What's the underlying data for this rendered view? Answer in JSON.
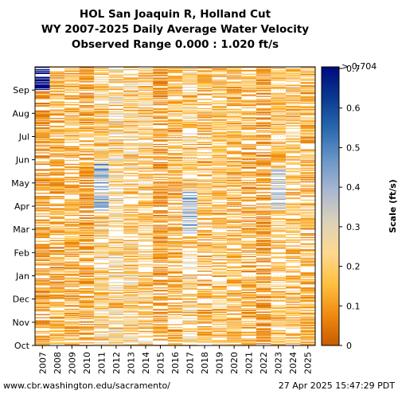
{
  "chart_data": {
    "type": "heatmap",
    "title": "HOL San Joaquin R, Holland Cut",
    "subtitle": "WY 2007-2025 Daily Average Water Velocity",
    "range_text": "Observed Range 0.000 : 1.020 ft/s",
    "x_categories": [
      "2007",
      "2008",
      "2009",
      "2010",
      "2011",
      "2012",
      "2013",
      "2014",
      "2015",
      "2016",
      "2017",
      "2018",
      "2019",
      "2020",
      "2021",
      "2022",
      "2023",
      "2024",
      "2025"
    ],
    "y_months": [
      "Oct",
      "Nov",
      "Dec",
      "Jan",
      "Feb",
      "Mar",
      "Apr",
      "May",
      "Jun",
      "Jul",
      "Aug",
      "Sep"
    ],
    "colorbar": {
      "label": "Scale (ft/s)",
      "ticks": [
        0,
        0.1,
        0.2,
        0.3,
        0.4,
        0.5,
        0.6,
        0.7
      ],
      "max_label": "> 0.704",
      "vmin": 0,
      "vmax": 0.704,
      "colors": [
        "#c85a00",
        "#f08a10",
        "#ffc040",
        "#ffd890",
        "#dcd2b8",
        "#aab8d0",
        "#6a96c8",
        "#2a6ab0",
        "#0a3a90",
        "#000a80"
      ]
    },
    "approx_typical_values_by_year": [
      {
        "year": "2007",
        "typical": 0.08,
        "high_spell": "Sep (~0.9)"
      },
      {
        "year": "2008",
        "typical": 0.1
      },
      {
        "year": "2009",
        "typical": 0.12
      },
      {
        "year": "2010",
        "typical": 0.09
      },
      {
        "year": "2011",
        "typical": 0.18,
        "high_spell": "Apr-May (~0.45)"
      },
      {
        "year": "2012",
        "typical": 0.2
      },
      {
        "year": "2013",
        "typical": 0.18
      },
      {
        "year": "2014",
        "typical": 0.17
      },
      {
        "year": "2015",
        "typical": 0.08
      },
      {
        "year": "2016",
        "typical": 0.12
      },
      {
        "year": "2017",
        "typical": 0.18,
        "high_spell": "Mar-Apr (~0.45)"
      },
      {
        "year": "2018",
        "typical": 0.12
      },
      {
        "year": "2019",
        "typical": 0.15
      },
      {
        "year": "2020",
        "typical": 0.12
      },
      {
        "year": "2021",
        "typical": 0.1
      },
      {
        "year": "2022",
        "typical": 0.08
      },
      {
        "year": "2023",
        "typical": 0.14,
        "high_spell": "Apr-May (~0.40)"
      },
      {
        "year": "2024",
        "typical": 0.15
      },
      {
        "year": "2025",
        "typical": 0.12
      }
    ]
  },
  "footer": {
    "url": "www.cbr.washington.edu/sacramento/",
    "timestamp": "27 Apr 2025 15:47:29 PDT"
  }
}
